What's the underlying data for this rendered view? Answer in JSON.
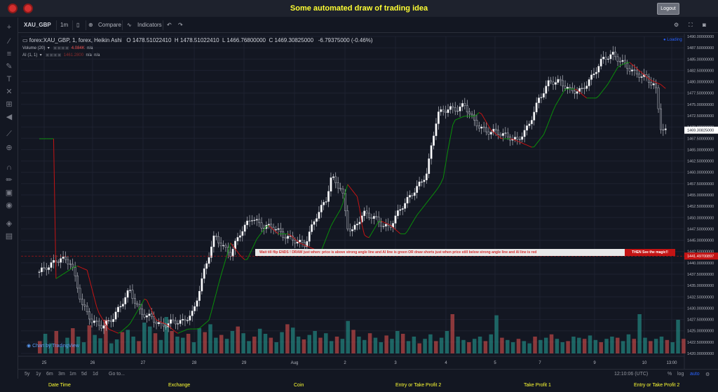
{
  "header": {
    "title": "Some automated draw of trading idea",
    "logout_label": "Logout"
  },
  "toolbar": {
    "symbol": "XAU_GBP",
    "interval": "1m",
    "compare": "Compare",
    "indicators": "Indicators"
  },
  "legend": {
    "name": "forex:XAU_GBP, 1, forex, Heikin Ashi",
    "open": "O 1478.51022410",
    "high": "H 1478.51022410",
    "low": "L 1466.76800000",
    "close": "C 1469.30825000",
    "change": "-6.79375000 (-0.46%)",
    "volume_label": "Volume (20)",
    "volume_value": "4.084K",
    "volume_na": "n/a",
    "ai_label": "AI (1, 1)",
    "ai_value": "1461.2800",
    "ai_na1": "n/a",
    "ai_na2": "n/a",
    "loading": "Loading"
  },
  "banner": {
    "message": "Wait till flip ENDS !   DRAW just when:  price is above strong angle line and AI line is green        OR        draw shorts just when price still below strong angle line and AI line is red",
    "magic": "THEN See the magic!!"
  },
  "colors": {
    "up": "#26a69a",
    "down": "#ef5350",
    "ai_green": "#0a8f0a",
    "ai_red": "#c41414",
    "candle_up": "#ffffff",
    "candle_down": "#2a2e39"
  },
  "chart_data": {
    "type": "candlestick",
    "price_axis": {
      "min": 1420,
      "max": 1490,
      "ticks": [
        "1490.00000000",
        "1487.50000000",
        "1485.00000000",
        "1482.50000000",
        "1480.00000000",
        "1477.50000000",
        "1475.00000000",
        "1472.50000000",
        "1470.00000000",
        "1467.50000000",
        "1465.00000000",
        "1462.50000000",
        "1460.00000000",
        "1457.50000000",
        "1455.00000000",
        "1452.50000000",
        "1450.00000000",
        "1447.50000000",
        "1445.00000000",
        "1442.50000000",
        "1440.00000000",
        "1437.50000000",
        "1435.00000000",
        "1432.50000000",
        "1430.00000000",
        "1427.50000000",
        "1425.00000000",
        "1422.50000000",
        "1420.00000000"
      ],
      "tick_values": [
        1490,
        1487.5,
        1485,
        1482.5,
        1480,
        1477.5,
        1475,
        1472.5,
        1470,
        1467.5,
        1465,
        1462.5,
        1460,
        1457.5,
        1455,
        1452.5,
        1450,
        1447.5,
        1445,
        1442.5,
        1440,
        1437.5,
        1435,
        1432.5,
        1430,
        1427.5,
        1425,
        1422.5,
        1420
      ],
      "last_price": "1469.30825000",
      "last_value": 1469.30825,
      "ai_price": "1441.49700897",
      "ai_value": 1441.49700897
    },
    "time_axis": {
      "labels": [
        "25",
        "26",
        "27",
        "28",
        "29",
        "Aug",
        "2",
        "3",
        "4",
        "5",
        "7",
        "9",
        "10",
        "13:00"
      ]
    },
    "price_path": [
      [
        0,
        1438
      ],
      [
        4,
        1441
      ],
      [
        6,
        1440
      ],
      [
        8,
        1431
      ],
      [
        10,
        1427
      ],
      [
        12,
        1426
      ],
      [
        14,
        1428
      ],
      [
        16,
        1432
      ],
      [
        17,
        1434
      ],
      [
        19,
        1429
      ],
      [
        21,
        1428
      ],
      [
        23,
        1426
      ],
      [
        25,
        1427
      ],
      [
        27,
        1427
      ],
      [
        29,
        1429
      ],
      [
        31,
        1438
      ],
      [
        33,
        1446
      ],
      [
        35,
        1443
      ],
      [
        36,
        1442
      ],
      [
        38,
        1447
      ],
      [
        40,
        1450
      ],
      [
        42,
        1448
      ],
      [
        44,
        1448
      ],
      [
        46,
        1446
      ],
      [
        48,
        1445
      ],
      [
        50,
        1444
      ],
      [
        52,
        1450
      ],
      [
        54,
        1454
      ],
      [
        55,
        1459
      ],
      [
        57,
        1456
      ],
      [
        58,
        1448
      ],
      [
        59,
        1447
      ],
      [
        61,
        1451
      ],
      [
        63,
        1450
      ],
      [
        65,
        1448
      ],
      [
        66,
        1448
      ],
      [
        68,
        1452
      ],
      [
        70,
        1455
      ],
      [
        72,
        1458
      ],
      [
        73,
        1460
      ],
      [
        74,
        1467
      ],
      [
        75,
        1473
      ],
      [
        77,
        1474
      ],
      [
        79,
        1474
      ],
      [
        80,
        1475
      ],
      [
        82,
        1471
      ],
      [
        84,
        1469
      ],
      [
        86,
        1469
      ],
      [
        88,
        1468
      ],
      [
        90,
        1467
      ],
      [
        92,
        1470
      ],
      [
        94,
        1476
      ],
      [
        96,
        1480
      ],
      [
        98,
        1480
      ],
      [
        100,
        1478
      ],
      [
        102,
        1478
      ],
      [
        104,
        1481
      ],
      [
        106,
        1485
      ],
      [
        108,
        1486
      ],
      [
        110,
        1484
      ],
      [
        112,
        1482
      ],
      [
        114,
        1481
      ],
      [
        116,
        1479
      ],
      [
        117,
        1470
      ],
      [
        118,
        1469
      ]
    ],
    "volume_max": 100,
    "volume_series": [
      22,
      35,
      18,
      40,
      12,
      28,
      45,
      30,
      20,
      50,
      33,
      27,
      60,
      18,
      25,
      38,
      42,
      30,
      22,
      55,
      48,
      36,
      24,
      65,
      40,
      30,
      28,
      35,
      20,
      45,
      38,
      52,
      28,
      33,
      26,
      40,
      48,
      36,
      22,
      30,
      44,
      35,
      28,
      20,
      38,
      52,
      46,
      30,
      25,
      33,
      40,
      28,
      36,
      22,
      30,
      26,
      58,
      42,
      30,
      24,
      36,
      28,
      20,
      32,
      26,
      40,
      35,
      22,
      30,
      18,
      26,
      34,
      22,
      28,
      40,
      70,
      30,
      24,
      20,
      26,
      30,
      22,
      34,
      68,
      28,
      24,
      20,
      26,
      22,
      18,
      30,
      24,
      28,
      34,
      26,
      20,
      22,
      30,
      28,
      26,
      32,
      24,
      20,
      26,
      30,
      28,
      22,
      34,
      26,
      70,
      28,
      22,
      26,
      30,
      24,
      20,
      60,
      26
    ],
    "annotations": [
      "Loading"
    ]
  },
  "bottom": {
    "ranges": [
      "5y",
      "1y",
      "6m",
      "3m",
      "1m",
      "5d",
      "1d"
    ],
    "goto": "Go to...",
    "clock": "12:10:06 (UTC)",
    "pct": "%",
    "log": "log",
    "auto": "auto",
    "tv": "Chart by TradingView"
  },
  "footer": [
    "Date Time",
    "Exchange",
    "Coin",
    "Entry or Take Profit 2",
    "Take Profit 1",
    "Entry or Take Profit 2"
  ]
}
